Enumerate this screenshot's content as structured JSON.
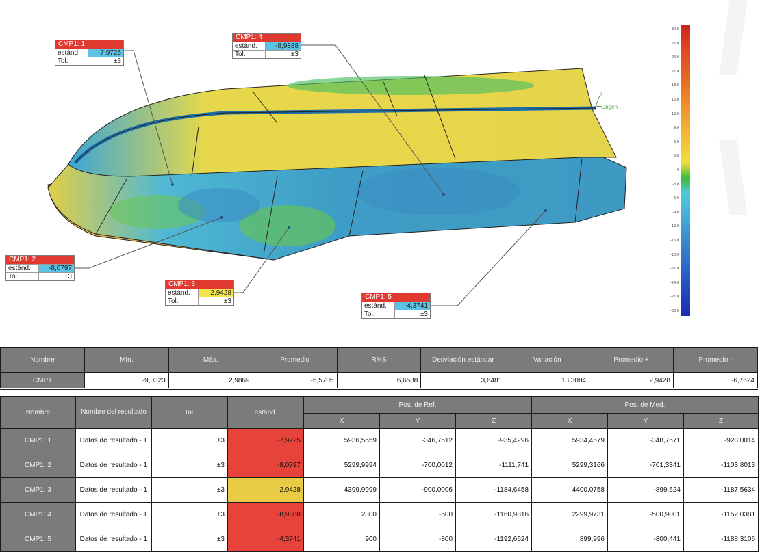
{
  "viewport": {
    "origin_label": "Origen",
    "axis_label": "y",
    "callouts": [
      {
        "title": "CMP1: 1",
        "std_label": "estánd.",
        "std_value": "-7,9725",
        "tol_label": "Tol.",
        "tol_value": "±3",
        "color": "#5bc3e6"
      },
      {
        "title": "CMP1: 4",
        "std_label": "estánd.",
        "std_value": "-8,9888",
        "tol_label": "Tol.",
        "tol_value": "±3",
        "color": "#5bc3e6"
      },
      {
        "title": "CMP1: 2",
        "std_label": "estánd.",
        "std_value": "-8,0797",
        "tol_label": "Tol.",
        "tol_value": "±3",
        "color": "#5bc3e6"
      },
      {
        "title": "CMP1: 3",
        "std_label": "estánd.",
        "std_value": "2,9428",
        "tol_label": "Tol.",
        "tol_value": "±3",
        "color": "#f2e34a"
      },
      {
        "title": "CMP1: 5",
        "std_label": "estánd.",
        "std_value": "-4,3741",
        "tol_label": "Tol.",
        "tol_value": "±3",
        "color": "#5bc3e6"
      }
    ],
    "header_color": "#e0392f",
    "colorbar": {
      "ticks": [
        "30.0",
        "27.0",
        "24.0",
        "21.0",
        "18.0",
        "15.0",
        "12.0",
        "9.0",
        "6.0",
        "3.0",
        "0",
        "-3.0",
        "-6.0",
        "-9.0",
        "-12.0",
        "-15.0",
        "-18.0",
        "-21.0",
        "-24.0",
        "-27.0",
        "-30.0"
      ],
      "colors": [
        "#c5231c",
        "#d83a1f",
        "#e04f22",
        "#e35f23",
        "#e87426",
        "#ed8a2a",
        "#f0a030",
        "#f2b535",
        "#f2c93c",
        "#f0dc42",
        "#3dbb3a",
        "#4fcbd9",
        "#4ab6d8",
        "#3fa0d4",
        "#398ccf",
        "#3278ca",
        "#2b64c4",
        "#2450bf",
        "#1e3cb9",
        "#1a2cb3"
      ]
    }
  },
  "stats": {
    "headers": [
      "Nombre",
      "Mín.",
      "Máx.",
      "Promedio",
      "RMS",
      "Desviación estándar",
      "Variación",
      "Promedio +",
      "Promedio -"
    ],
    "row": [
      "CMP1",
      "-9,0323",
      "2,9869",
      "-5,5705",
      "6,6588",
      "3,6481",
      "13,3084",
      "2,9428",
      "-6,7624"
    ]
  },
  "points": {
    "h_name": "Nombre",
    "h_result": "Nombre del resultado",
    "h_tol": "Tol.",
    "h_std": "estánd.",
    "h_ref": "Pos. de Ref.",
    "h_med": "Pos. de Med.",
    "axes": [
      "X",
      "Y",
      "Z",
      "X",
      "Y",
      "Z"
    ],
    "red": "#e8433a",
    "yellow": "#e9cc45",
    "rows": [
      {
        "name": "CMP1: 1",
        "result": "Datos de resultado - 1",
        "tol": "±3",
        "std": "-7,9725",
        "status": "red",
        "rx": "5936,5559",
        "ry": "-346,7512",
        "rz": "-935,4296",
        "mx": "5934,4679",
        "my": "-348,7571",
        "mz": "-928,0014"
      },
      {
        "name": "CMP1: 2",
        "result": "Datos de resultado - 1",
        "tol": "±3",
        "std": "-8,0797",
        "status": "red",
        "rx": "5299,9994",
        "ry": "-700,0012",
        "rz": "-1111,741",
        "mx": "5299,3166",
        "my": "-701,3341",
        "mz": "-1103,8013"
      },
      {
        "name": "CMP1: 3",
        "result": "Datos de resultado - 1",
        "tol": "±3",
        "std": "2,9428",
        "status": "yellow",
        "rx": "4399,9999",
        "ry": "-900,0006",
        "rz": "-1184,6458",
        "mx": "4400,0758",
        "my": "-899,624",
        "mz": "-1187,5634"
      },
      {
        "name": "CMP1: 4",
        "result": "Datos de resultado - 1",
        "tol": "±3",
        "std": "-8,9888",
        "status": "red",
        "rx": "2300",
        "ry": "-500",
        "rz": "-1160,9816",
        "mx": "2299,9731",
        "my": "-500,9001",
        "mz": "-1152,0381"
      },
      {
        "name": "CMP1: 5",
        "result": "Datos de resultado - 1",
        "tol": "±3",
        "std": "-4,3741",
        "status": "red",
        "rx": "900",
        "ry": "-800",
        "rz": "-1192,6624",
        "mx": "899,996",
        "my": "-800,441",
        "mz": "-1188,3106"
      }
    ]
  }
}
